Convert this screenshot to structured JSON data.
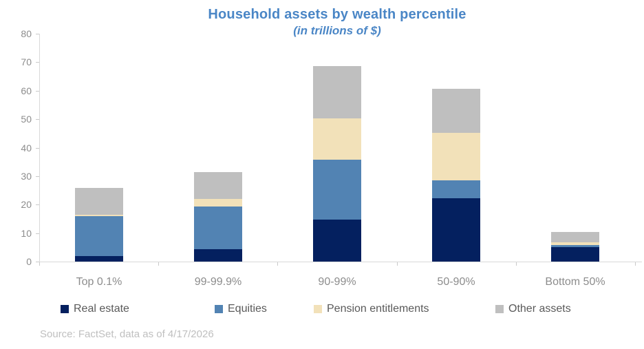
{
  "chart": {
    "title": "Household assets by wealth percentile",
    "subtitle": "(in trillions of $)",
    "source": "Source: FactSet, data as of 4/17/2026"
  },
  "chart_data": {
    "type": "bar",
    "stacked": true,
    "title": "Household assets by wealth percentile",
    "subtitle": "(in trillions of $)",
    "categories": [
      "Top 0.1%",
      "99-99.9%",
      "90-99%",
      "50-90%",
      "Bottom 50%"
    ],
    "series": [
      {
        "name": "Real estate",
        "color": "#04205F",
        "values": [
          1.9,
          4.4,
          14.8,
          22.3,
          5.1
        ]
      },
      {
        "name": "Equities",
        "color": "#5283B3",
        "values": [
          14.1,
          15.0,
          21.0,
          6.3,
          0.7
        ]
      },
      {
        "name": "Pension entitlements",
        "color": "#F2E1B9",
        "values": [
          0.5,
          2.6,
          14.4,
          16.7,
          1.0
        ]
      },
      {
        "name": "Other assets",
        "color": "#BFBFBF",
        "values": [
          9.4,
          9.5,
          18.4,
          15.3,
          3.6
        ]
      }
    ],
    "totals": [
      25.9,
      31.5,
      68.6,
      60.6,
      10.4
    ],
    "xlabel": "",
    "ylabel": "",
    "ylim": [
      0,
      80
    ],
    "ytick_interval": 10,
    "yticks": [
      0,
      10,
      20,
      30,
      40,
      50,
      60,
      70,
      80
    ],
    "grid": false,
    "legend_position": "bottom",
    "source": "Source: FactSet, data as of 4/17/2026"
  },
  "colors": {
    "title": "#4A86C6",
    "axis_line": "#D9D9D9",
    "tick": "#C9C9C9",
    "axis_label": "#8C8C8C",
    "legend_label": "#595959",
    "source": "#BFBFBF"
  }
}
